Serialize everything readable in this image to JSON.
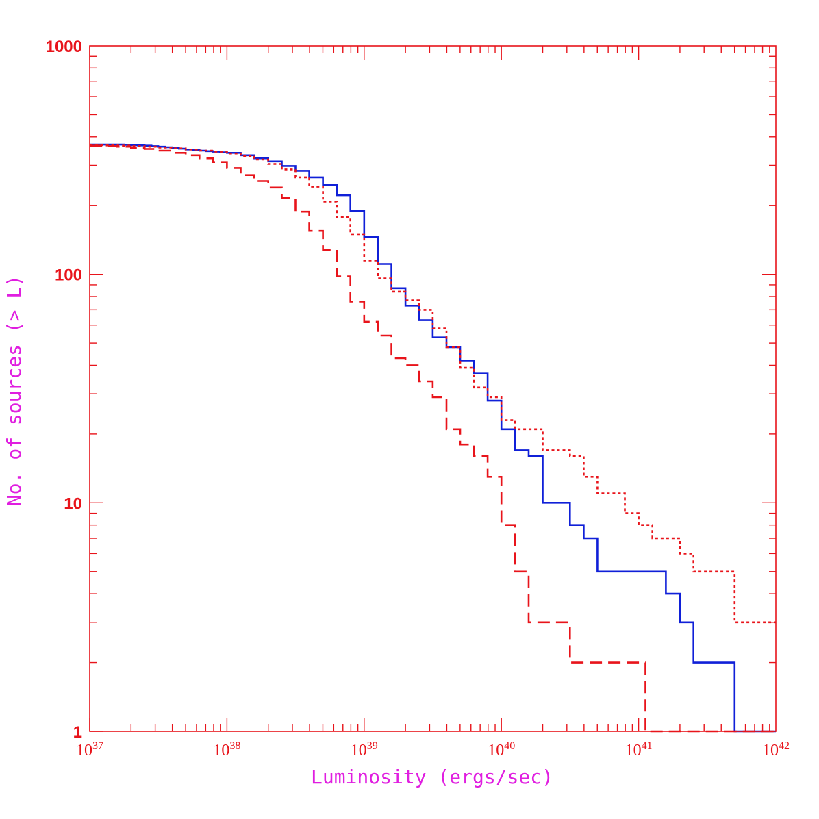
{
  "colors": {
    "axis": "#e8141b",
    "axis_title": "#e01ee0",
    "blue_series": "#1020d8",
    "red_series": "#e8141b"
  },
  "chart_data": {
    "type": "line",
    "step": true,
    "xscale": "log",
    "yscale": "log",
    "xlim": [
      1e+37,
      1e+42
    ],
    "ylim": [
      1,
      1000
    ],
    "xlabel": "Luminosity (ergs/sec)",
    "ylabel": "No. of sources (> L)",
    "x_tick_labels": [
      {
        "value": 1e+37,
        "base": "10",
        "exp": "37"
      },
      {
        "value": 1e+38,
        "base": "10",
        "exp": "38"
      },
      {
        "value": 1e+39,
        "base": "10",
        "exp": "39"
      },
      {
        "value": 1e+40,
        "base": "10",
        "exp": "40"
      },
      {
        "value": 1e+41,
        "base": "10",
        "exp": "41"
      },
      {
        "value": 1e+42,
        "base": "10",
        "exp": "42"
      }
    ],
    "y_tick_labels": [
      {
        "value": 1,
        "label": "1"
      },
      {
        "value": 10,
        "label": "10"
      },
      {
        "value": 100,
        "label": "100"
      },
      {
        "value": 1000,
        "label": "1000"
      }
    ],
    "grid": false,
    "series": [
      {
        "style": "solid",
        "color": "#1020d8",
        "x": [
          1e+37,
          1.12e+37,
          1.26e+37,
          1.41e+37,
          1.58e+37,
          1.78e+37,
          2e+37,
          2.24e+37,
          2.51e+37,
          2.82e+37,
          3.16e+37,
          3.55e+37,
          3.98e+37,
          4.47e+37,
          5.01e+37,
          5.62e+37,
          6.31e+37,
          7.08e+37,
          7.94e+37,
          8.91e+37,
          1e+38,
          1.26e+38,
          1.58e+38,
          2e+38,
          2.51e+38,
          3.16e+38,
          3.98e+38,
          5.01e+38,
          6.31e+38,
          7.94e+38,
          1e+39,
          1.26e+39,
          1.58e+39,
          2e+39,
          2.51e+39,
          3.16e+39,
          3.98e+39,
          5.01e+39,
          6.31e+39,
          7.94e+39,
          1e+40,
          1.26e+40,
          1.58e+40,
          2e+40,
          3.16e+40,
          3.98e+40,
          5.01e+40,
          1.58e+41,
          2e+41,
          2.51e+41,
          5.01e+41,
          1e+42
        ],
        "y": [
          370,
          370,
          370,
          370,
          370,
          369,
          368,
          367,
          366,
          364,
          362,
          360,
          357,
          355,
          352,
          350,
          348,
          346,
          344,
          342,
          340,
          332,
          322,
          312,
          298,
          284,
          266,
          246,
          222,
          190,
          146,
          111,
          87,
          73,
          63,
          53,
          48,
          42,
          37,
          28,
          21,
          17,
          16,
          10,
          8,
          7,
          5,
          4,
          3,
          2,
          1,
          1
        ]
      },
      {
        "style": "dotted",
        "color": "#e8141b",
        "x": [
          1e+37,
          1.26e+37,
          1.58e+37,
          2e+37,
          2.51e+37,
          3.16e+37,
          3.98e+37,
          5.01e+37,
          6.31e+37,
          7.94e+37,
          1e+38,
          1.26e+38,
          1.58e+38,
          2e+38,
          2.51e+38,
          3.16e+38,
          3.98e+38,
          5.01e+38,
          6.31e+38,
          7.94e+38,
          1e+39,
          1.26e+39,
          1.58e+39,
          2e+39,
          2.51e+39,
          3.16e+39,
          3.98e+39,
          5.01e+39,
          6.31e+39,
          7.94e+39,
          1e+40,
          1.26e+40,
          1.58e+40,
          2e+40,
          3.16e+40,
          3.98e+40,
          5.01e+40,
          7.94e+40,
          1e+41,
          1.26e+41,
          1.58e+41,
          2e+41,
          2.51e+41,
          5.01e+41,
          1e+42
        ],
        "y": [
          368,
          367,
          366,
          364,
          362,
          359,
          356,
          352,
          348,
          344,
          338,
          330,
          318,
          304,
          288,
          266,
          242,
          208,
          178,
          150,
          115,
          96,
          84,
          77,
          70,
          58,
          48,
          39,
          32,
          29,
          23,
          21,
          21,
          17,
          16,
          13,
          11,
          9,
          8,
          7,
          7,
          6,
          5,
          3,
          3
        ]
      },
      {
        "style": "dashed",
        "color": "#e8141b",
        "x": [
          1e+37,
          1.26e+37,
          1.58e+37,
          2e+37,
          2.51e+37,
          3.16e+37,
          3.98e+37,
          5.01e+37,
          6.31e+37,
          7.94e+37,
          1e+38,
          1.26e+38,
          1.58e+38,
          2e+38,
          2.51e+38,
          3.16e+38,
          3.98e+38,
          5.01e+38,
          6.31e+38,
          7.94e+38,
          1e+39,
          1.26e+39,
          1.58e+39,
          2e+39,
          2.51e+39,
          3.16e+39,
          3.98e+39,
          5.01e+39,
          6.31e+39,
          7.94e+39,
          1e+40,
          1.26e+40,
          1.58e+40,
          3.16e+40,
          1.12e+41,
          1e+42
        ],
        "y": [
          366,
          364,
          362,
          358,
          354,
          348,
          340,
          332,
          322,
          310,
          292,
          272,
          256,
          240,
          216,
          188,
          155,
          128,
          98,
          76,
          62,
          54,
          43,
          40,
          34,
          29,
          21,
          18,
          16,
          13,
          8,
          5,
          3,
          2,
          1,
          1
        ]
      }
    ]
  }
}
